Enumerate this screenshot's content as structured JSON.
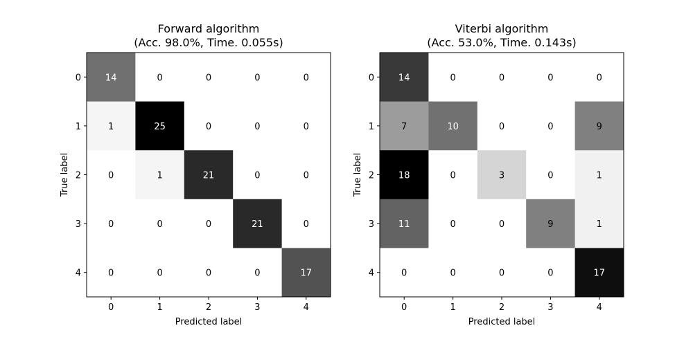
{
  "chart_data": [
    {
      "type": "heatmap",
      "title": "Forward algorithm\n(Acc. 98.0%, Time. 0.055s)",
      "xlabel": "Predicted label",
      "ylabel": "True label",
      "x_ticks": [
        "0",
        "1",
        "2",
        "3",
        "4"
      ],
      "y_ticks": [
        "0",
        "1",
        "2",
        "3",
        "4"
      ],
      "colormap": "Greys",
      "values": [
        [
          14,
          0,
          0,
          0,
          0
        ],
        [
          1,
          25,
          0,
          0,
          0
        ],
        [
          0,
          1,
          21,
          0,
          0
        ],
        [
          0,
          0,
          0,
          21,
          0
        ],
        [
          0,
          0,
          0,
          0,
          17
        ]
      ]
    },
    {
      "type": "heatmap",
      "title": "Viterbi algorithm\n(Acc. 53.0%, Time. 0.143s)",
      "xlabel": "Predicted label",
      "ylabel": "True label",
      "x_ticks": [
        "0",
        "1",
        "2",
        "3",
        "4"
      ],
      "y_ticks": [
        "0",
        "1",
        "2",
        "3",
        "4"
      ],
      "colormap": "Greys",
      "values": [
        [
          14,
          0,
          0,
          0,
          0
        ],
        [
          7,
          10,
          0,
          0,
          9
        ],
        [
          18,
          0,
          3,
          0,
          1
        ],
        [
          11,
          0,
          0,
          9,
          1
        ],
        [
          0,
          0,
          0,
          0,
          17
        ]
      ]
    }
  ]
}
